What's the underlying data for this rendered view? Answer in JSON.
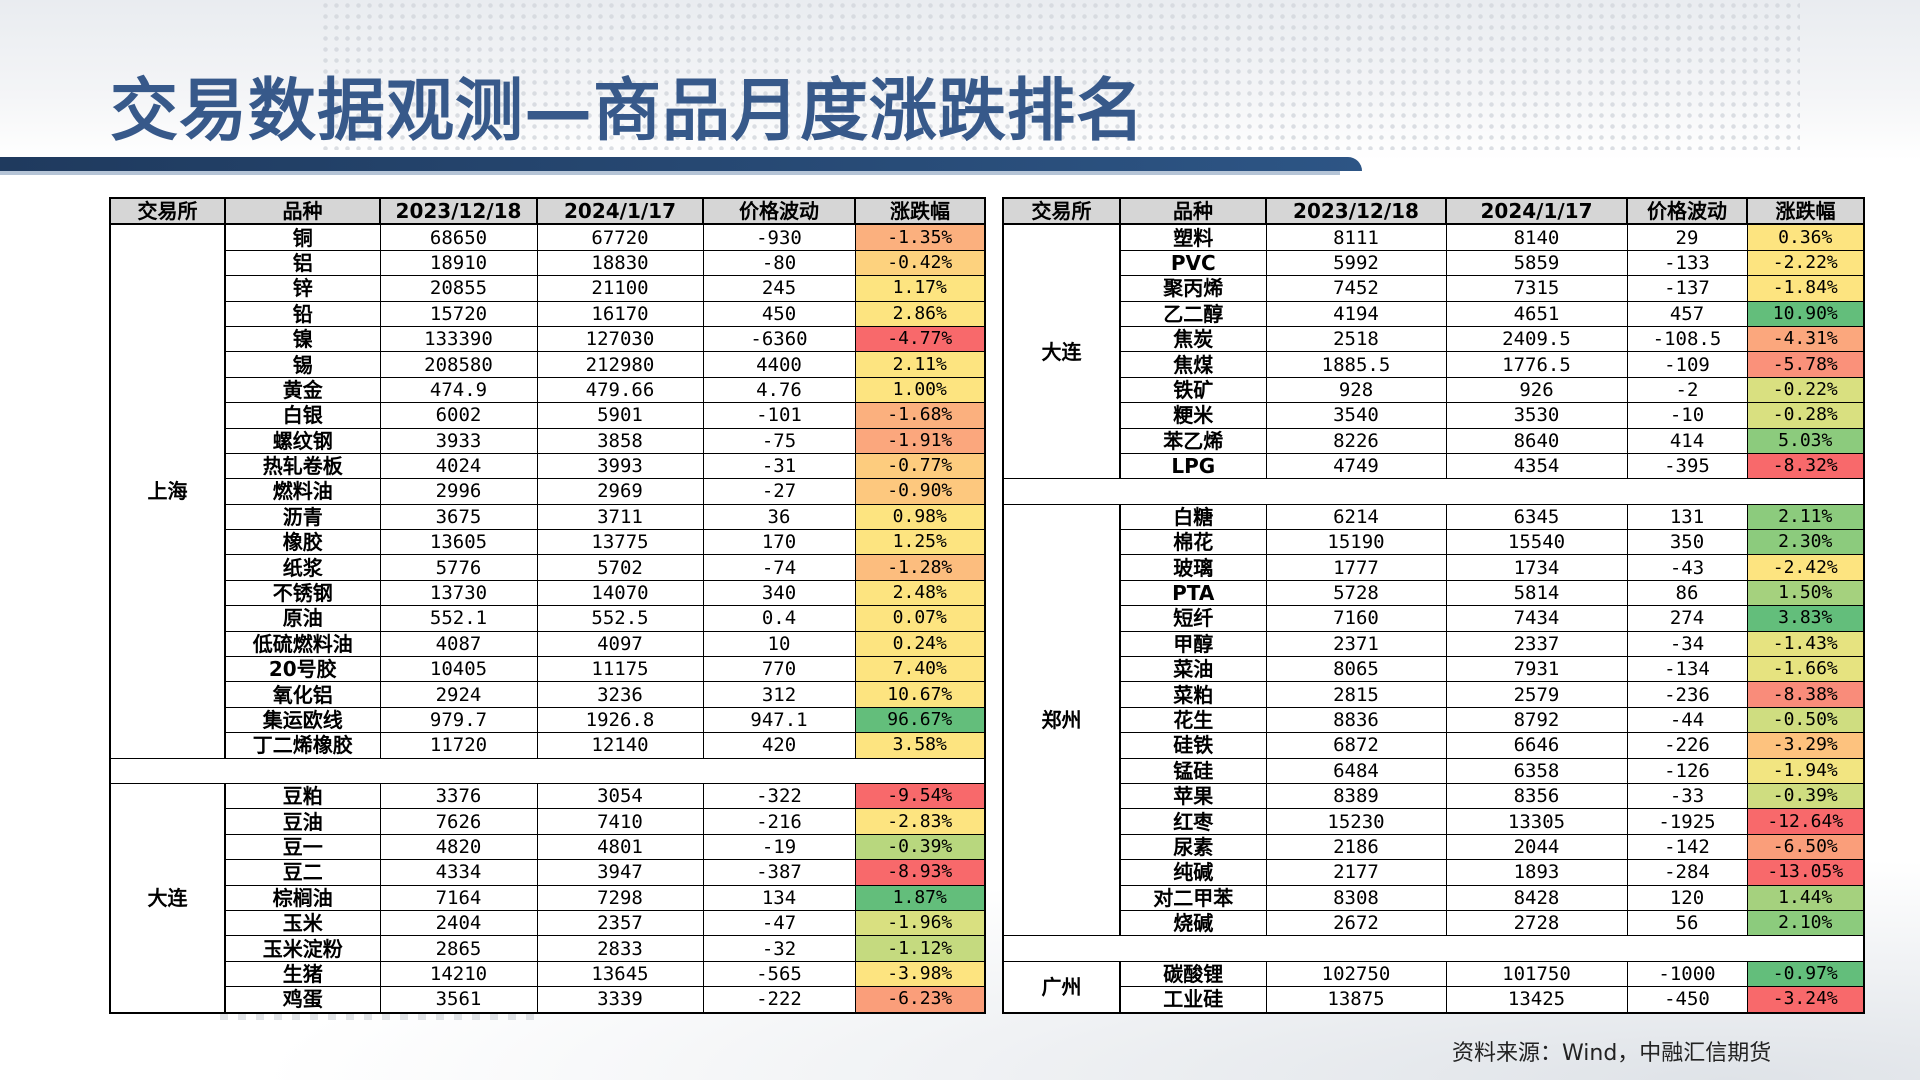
{
  "title": "交易数据观测—商品月度涨跌排名",
  "source": "资料来源：Wind，中融汇信期货",
  "headers": [
    "交易所",
    "品种",
    "2023/12/18",
    "2024/1/17",
    "价格波动",
    "涨跌幅"
  ],
  "left_panel": {
    "groups": [
      {
        "exchange": "上海",
        "rows": [
          {
            "name": "铜",
            "d1": "68650",
            "d2": "67720",
            "change": "-930",
            "pct": "-1.35%",
            "color": "#fbb07e"
          },
          {
            "name": "铝",
            "d1": "18910",
            "d2": "18830",
            "change": "-80",
            "pct": "-0.42%",
            "color": "#fdd27e"
          },
          {
            "name": "锌",
            "d1": "20855",
            "d2": "21100",
            "change": "245",
            "pct": "1.17%",
            "color": "#fde480"
          },
          {
            "name": "铅",
            "d1": "15720",
            "d2": "16170",
            "change": "450",
            "pct": "2.86%",
            "color": "#fde480"
          },
          {
            "name": "镍",
            "d1": "133390",
            "d2": "127030",
            "change": "-6360",
            "pct": "-4.77%",
            "color": "#f8696b"
          },
          {
            "name": "锡",
            "d1": "208580",
            "d2": "212980",
            "change": "4400",
            "pct": "2.11%",
            "color": "#fde480"
          },
          {
            "name": "黄金",
            "d1": "474.9",
            "d2": "479.66",
            "change": "4.76",
            "pct": "1.00%",
            "color": "#fde480"
          },
          {
            "name": "白银",
            "d1": "6002",
            "d2": "5901",
            "change": "-101",
            "pct": "-1.68%",
            "color": "#fbb07e"
          },
          {
            "name": "螺纹钢",
            "d1": "3933",
            "d2": "3858",
            "change": "-75",
            "pct": "-1.91%",
            "color": "#fba77d"
          },
          {
            "name": "热轧卷板",
            "d1": "4024",
            "d2": "3993",
            "change": "-31",
            "pct": "-0.77%",
            "color": "#fdcc7e"
          },
          {
            "name": "燃料油",
            "d1": "2996",
            "d2": "2969",
            "change": "-27",
            "pct": "-0.90%",
            "color": "#fdc87e"
          },
          {
            "name": "沥青",
            "d1": "3675",
            "d2": "3711",
            "change": "36",
            "pct": "0.98%",
            "color": "#fde480"
          },
          {
            "name": "橡胶",
            "d1": "13605",
            "d2": "13775",
            "change": "170",
            "pct": "1.25%",
            "color": "#fde480"
          },
          {
            "name": "纸浆",
            "d1": "5776",
            "d2": "5702",
            "change": "-74",
            "pct": "-1.28%",
            "color": "#fcbd7e"
          },
          {
            "name": "不锈钢",
            "d1": "13730",
            "d2": "14070",
            "change": "340",
            "pct": "2.48%",
            "color": "#fde480"
          },
          {
            "name": "原油",
            "d1": "552.1",
            "d2": "552.5",
            "change": "0.4",
            "pct": "0.07%",
            "color": "#fde480"
          },
          {
            "name": "低硫燃料油",
            "d1": "4087",
            "d2": "4097",
            "change": "10",
            "pct": "0.24%",
            "color": "#fde480"
          },
          {
            "name": "20号胶",
            "d1": "10405",
            "d2": "11175",
            "change": "770",
            "pct": "7.40%",
            "color": "#fde480"
          },
          {
            "name": "氧化铝",
            "d1": "2924",
            "d2": "3236",
            "change": "312",
            "pct": "10.67%",
            "color": "#fde480"
          },
          {
            "name": "集运欧线",
            "d1": "979.7",
            "d2": "1926.8",
            "change": "947.1",
            "pct": "96.67%",
            "color": "#63be7b"
          },
          {
            "name": "丁二烯橡胶",
            "d1": "11720",
            "d2": "12140",
            "change": "420",
            "pct": "3.58%",
            "color": "#fde480"
          }
        ]
      },
      {
        "exchange": "大连",
        "rows": [
          {
            "name": "豆粕",
            "d1": "3376",
            "d2": "3054",
            "change": "-322",
            "pct": "-9.54%",
            "color": "#f8696b"
          },
          {
            "name": "豆油",
            "d1": "7626",
            "d2": "7410",
            "change": "-216",
            "pct": "-2.83%",
            "color": "#fde480"
          },
          {
            "name": "豆一",
            "d1": "4820",
            "d2": "4801",
            "change": "-19",
            "pct": "-0.39%",
            "color": "#b8d77e"
          },
          {
            "name": "豆二",
            "d1": "4334",
            "d2": "3947",
            "change": "-387",
            "pct": "-8.93%",
            "color": "#f8696b"
          },
          {
            "name": "棕榈油",
            "d1": "7164",
            "d2": "7298",
            "change": "134",
            "pct": "1.87%",
            "color": "#63be7b"
          },
          {
            "name": "玉米",
            "d1": "2404",
            "d2": "2357",
            "change": "-47",
            "pct": "-1.96%",
            "color": "#d9e080"
          },
          {
            "name": "玉米淀粉",
            "d1": "2865",
            "d2": "2833",
            "change": "-32",
            "pct": "-1.12%",
            "color": "#c5da7f"
          },
          {
            "name": "生猪",
            "d1": "14210",
            "d2": "13645",
            "change": "-565",
            "pct": "-3.98%",
            "color": "#fde480"
          },
          {
            "name": "鸡蛋",
            "d1": "3561",
            "d2": "3339",
            "change": "-222",
            "pct": "-6.23%",
            "color": "#fa9e7a"
          }
        ]
      }
    ]
  },
  "right_panel": {
    "groups": [
      {
        "exchange": "大连",
        "rows": [
          {
            "name": "塑料",
            "d1": "8111",
            "d2": "8140",
            "change": "29",
            "pct": "0.36%",
            "color": "#fde480"
          },
          {
            "name": "PVC",
            "d1": "5992",
            "d2": "5859",
            "change": "-133",
            "pct": "-2.22%",
            "color": "#fde480"
          },
          {
            "name": "聚丙烯",
            "d1": "7452",
            "d2": "7315",
            "change": "-137",
            "pct": "-1.84%",
            "color": "#fde480"
          },
          {
            "name": "乙二醇",
            "d1": "4194",
            "d2": "4651",
            "change": "457",
            "pct": "10.90%",
            "color": "#63be7b"
          },
          {
            "name": "焦炭",
            "d1": "2518",
            "d2": "2409.5",
            "change": "-108.5",
            "pct": "-4.31%",
            "color": "#fba77d"
          },
          {
            "name": "焦煤",
            "d1": "1885.5",
            "d2": "1776.5",
            "change": "-109",
            "pct": "-5.78%",
            "color": "#fa917a"
          },
          {
            "name": "铁矿",
            "d1": "928",
            "d2": "926",
            "change": "-2",
            "pct": "-0.22%",
            "color": "#d9e080"
          },
          {
            "name": "粳米",
            "d1": "3540",
            "d2": "3530",
            "change": "-10",
            "pct": "-0.28%",
            "color": "#d9e080"
          },
          {
            "name": "苯乙烯",
            "d1": "8226",
            "d2": "8640",
            "change": "414",
            "pct": "5.03%",
            "color": "#8ccb7d"
          },
          {
            "name": "LPG",
            "d1": "4749",
            "d2": "4354",
            "change": "-395",
            "pct": "-8.32%",
            "color": "#f8696b"
          }
        ]
      },
      {
        "exchange": "郑州",
        "rows": [
          {
            "name": "白糖",
            "d1": "6214",
            "d2": "6345",
            "change": "131",
            "pct": "2.11%",
            "color": "#8ccb7d"
          },
          {
            "name": "棉花",
            "d1": "15190",
            "d2": "15540",
            "change": "350",
            "pct": "2.30%",
            "color": "#8ccb7d"
          },
          {
            "name": "玻璃",
            "d1": "1777",
            "d2": "1734",
            "change": "-43",
            "pct": "-2.42%",
            "color": "#fde480"
          },
          {
            "name": "PTA",
            "d1": "5728",
            "d2": "5814",
            "change": "86",
            "pct": "1.50%",
            "color": "#a5d17e"
          },
          {
            "name": "短纤",
            "d1": "7160",
            "d2": "7434",
            "change": "274",
            "pct": "3.83%",
            "color": "#63be7b"
          },
          {
            "name": "甲醇",
            "d1": "2371",
            "d2": "2337",
            "change": "-34",
            "pct": "-1.43%",
            "color": "#e6e380"
          },
          {
            "name": "菜油",
            "d1": "8065",
            "d2": "7931",
            "change": "-134",
            "pct": "-1.66%",
            "color": "#e6e380"
          },
          {
            "name": "菜粕",
            "d1": "2815",
            "d2": "2579",
            "change": "-236",
            "pct": "-8.38%",
            "color": "#f98c7a"
          },
          {
            "name": "花生",
            "d1": "8836",
            "d2": "8792",
            "change": "-44",
            "pct": "-0.50%",
            "color": "#cfdd80"
          },
          {
            "name": "硅铁",
            "d1": "6872",
            "d2": "6646",
            "change": "-226",
            "pct": "-3.29%",
            "color": "#fdc27e"
          },
          {
            "name": "锰硅",
            "d1": "6484",
            "d2": "6358",
            "change": "-126",
            "pct": "-1.94%",
            "color": "#f2e581"
          },
          {
            "name": "苹果",
            "d1": "8389",
            "d2": "8356",
            "change": "-33",
            "pct": "-0.39%",
            "color": "#cfdd80"
          },
          {
            "name": "红枣",
            "d1": "15230",
            "d2": "13305",
            "change": "-1925",
            "pct": "-12.64%",
            "color": "#f8696b"
          },
          {
            "name": "尿素",
            "d1": "2186",
            "d2": "2044",
            "change": "-142",
            "pct": "-6.50%",
            "color": "#fa9e7a"
          },
          {
            "name": "纯碱",
            "d1": "2177",
            "d2": "1893",
            "change": "-284",
            "pct": "-13.05%",
            "color": "#f8696b"
          },
          {
            "name": "对二甲苯",
            "d1": "8308",
            "d2": "8428",
            "change": "120",
            "pct": "1.44%",
            "color": "#a5d17e"
          },
          {
            "name": "烧碱",
            "d1": "2672",
            "d2": "2728",
            "change": "56",
            "pct": "2.10%",
            "color": "#8ccb7d"
          }
        ]
      },
      {
        "exchange": "广州",
        "rows": [
          {
            "name": "碳酸锂",
            "d1": "102750",
            "d2": "101750",
            "change": "-1000",
            "pct": "-0.97%",
            "color": "#63be7b"
          },
          {
            "name": "工业硅",
            "d1": "13875",
            "d2": "13425",
            "change": "-450",
            "pct": "-3.24%",
            "color": "#f8696b"
          }
        ]
      }
    ]
  }
}
